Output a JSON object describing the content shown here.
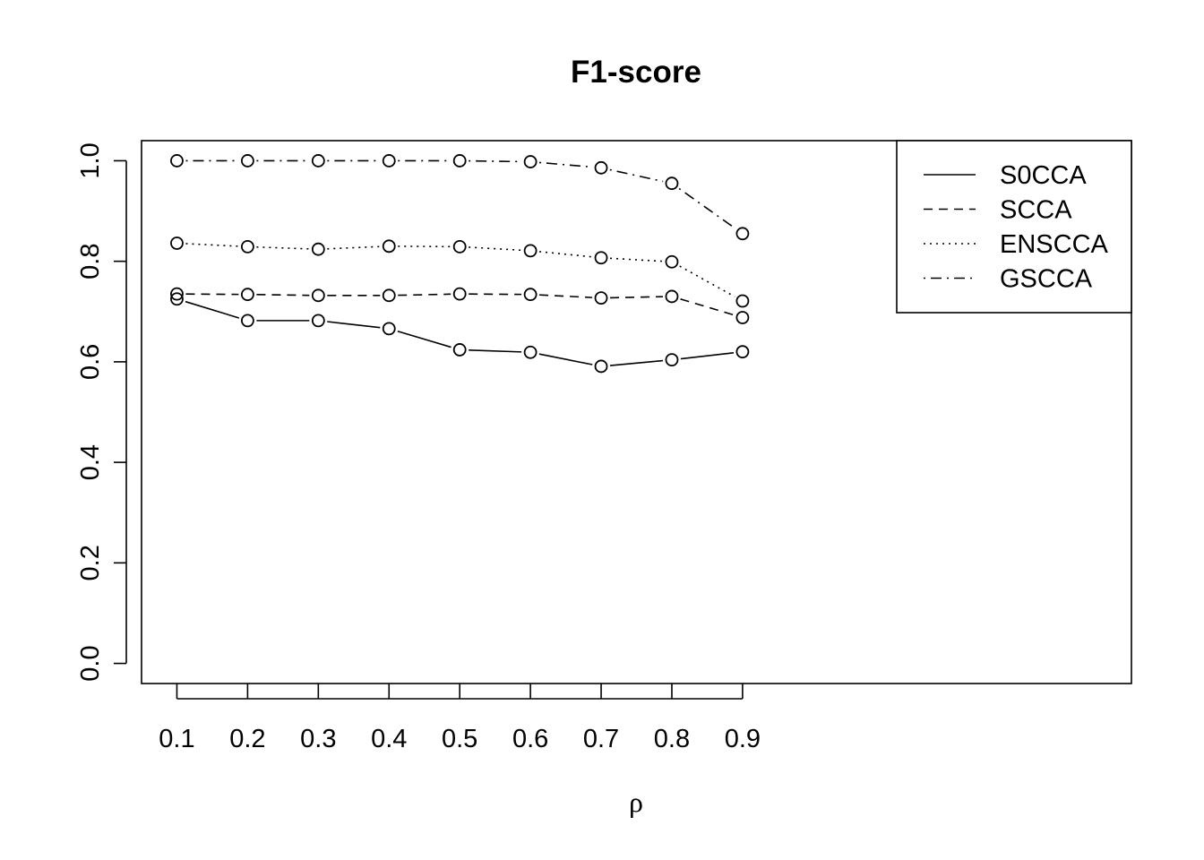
{
  "chart_data": {
    "type": "line",
    "title": "F1-score",
    "xlabel": "ρ",
    "ylabel": "",
    "x": [
      0.1,
      0.2,
      0.3,
      0.4,
      0.5,
      0.6,
      0.7,
      0.8,
      0.9
    ],
    "x_tick_labels": [
      "0.1",
      "0.2",
      "0.3",
      "0.4",
      "0.5",
      "0.6",
      "0.7",
      "0.8",
      "0.9"
    ],
    "y_tick_labels": [
      "0.0",
      "0.2",
      "0.4",
      "0.6",
      "0.8",
      "1.0"
    ],
    "y_ticks": [
      0.0,
      0.2,
      0.4,
      0.6,
      0.8,
      1.0
    ],
    "xlim": [
      0.05,
      1.45
    ],
    "ylim": [
      -0.04,
      1.04
    ],
    "grid": false,
    "legend_position": "top-right",
    "series": [
      {
        "name": "S0CCA",
        "line_style": "solid",
        "values": [
          0.725,
          0.682,
          0.682,
          0.666,
          0.624,
          0.619,
          0.591,
          0.604,
          0.62
        ]
      },
      {
        "name": "SCCA",
        "line_style": "dashed",
        "values": [
          0.735,
          0.734,
          0.732,
          0.732,
          0.735,
          0.734,
          0.727,
          0.73,
          0.688
        ]
      },
      {
        "name": "ENSCCA",
        "line_style": "dotted",
        "values": [
          0.836,
          0.829,
          0.824,
          0.83,
          0.829,
          0.821,
          0.807,
          0.799,
          0.721
        ]
      },
      {
        "name": "GSCCA",
        "line_style": "dotdash",
        "values": [
          1.0,
          1.0,
          1.0,
          1.0,
          1.0,
          0.998,
          0.986,
          0.955,
          0.855
        ]
      }
    ]
  }
}
